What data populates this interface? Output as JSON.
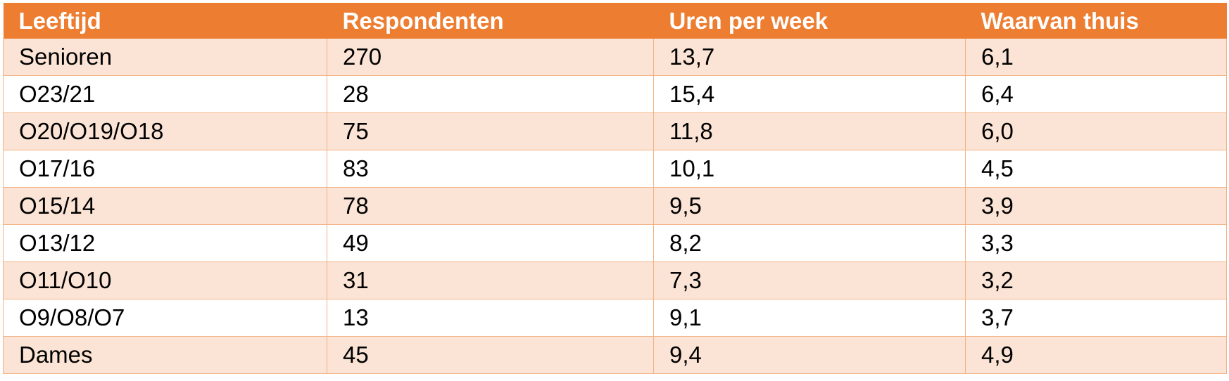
{
  "table": {
    "headers": [
      "Leeftijd",
      "Respondenten",
      "Uren per week",
      "Waarvan thuis"
    ],
    "rows": [
      [
        "Senioren",
        "270",
        "13,7",
        "6,1"
      ],
      [
        "O23/21",
        "28",
        "15,4",
        "6,4"
      ],
      [
        "O20/O19/O18",
        "75",
        "11,8",
        "6,0"
      ],
      [
        "O17/16",
        "83",
        "10,1",
        "4,5"
      ],
      [
        "O15/14",
        "78",
        "9,5",
        "3,9"
      ],
      [
        "O13/12",
        "49",
        "8,2",
        "3,3"
      ],
      [
        "O11/O10",
        "31",
        "7,3",
        "3,2"
      ],
      [
        "O9/O8/O7",
        "13",
        "9,1",
        "3,7"
      ],
      [
        "Dames",
        "45",
        "9,4",
        "4,9"
      ]
    ]
  },
  "colors": {
    "header_bg": "#ED7D31",
    "header_text": "#FFFFFF",
    "band_bg": "#FBE4D5",
    "border": "#F4B183"
  }
}
